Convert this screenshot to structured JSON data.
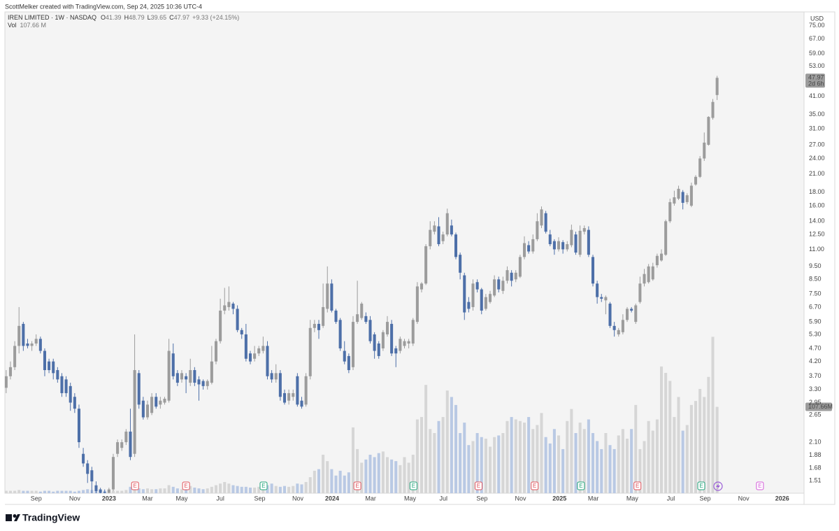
{
  "chart_data": {
    "type": "candlestick",
    "credit": "ScottMelker created with TradingView.com, Sep 24, 2025 10:36 UTC-4",
    "symbol": "IREN LIMITED · 1W · NASDAQ",
    "ohlc_letters": [
      "O",
      "H",
      "L",
      "C"
    ],
    "change_label": "+9.33 (+24.15%)",
    "volume_name": "Vol",
    "volume_legend_label": "107.66 M",
    "last_volume_label": "107.66M",
    "countdown": "2d 6h",
    "currency": "USD",
    "brand": "TradingView",
    "log_scale": true,
    "grid": false,
    "up_color": "#9c9c9c",
    "down_color": "#4d6fa8",
    "volume_up_color": "#d6d6d6",
    "volume_down_color": "#b9c9e4",
    "open": [
      3.35,
      3.7,
      4.0,
      4.8,
      5.8,
      4.9,
      4.8,
      4.9,
      5.1,
      4.6,
      4.2,
      4.2,
      3.9,
      3.7,
      3.6,
      3.4,
      3.1,
      2.8,
      1.9,
      1.75,
      1.65,
      1.45,
      1.4,
      1.37,
      1.36,
      1.4,
      1.9,
      2.0,
      2.1,
      2.3,
      1.9,
      3.8,
      3.0,
      2.6,
      2.7,
      3.1,
      2.9,
      2.95,
      3.0,
      4.5,
      3.8,
      3.6,
      3.7,
      3.5,
      3.9,
      3.6,
      3.55,
      3.4,
      3.5,
      4.2,
      5.0,
      6.5,
      6.7,
      6.9,
      6.6,
      5.5,
      5.3,
      4.5,
      4.3,
      4.5,
      4.6,
      4.8,
      3.8,
      3.6,
      3.8,
      3.2,
      3.0,
      3.1,
      3.7,
      3.0,
      2.9,
      3.7,
      5.6,
      5.8,
      5.7,
      6.6,
      8.2,
      6.5,
      6.0,
      4.6,
      4.4,
      4.0,
      5.9,
      6.1,
      6.2,
      6.0,
      5.3,
      4.9,
      4.7,
      5.3,
      5.8,
      4.7,
      4.6,
      4.8,
      4.9,
      4.9,
      5.9,
      7.8,
      8.2,
      11.3,
      12.8,
      13.4,
      11.8,
      12.5,
      13.5,
      12.5,
      10.5,
      8.8,
      7.0,
      6.7,
      8.3,
      7.8,
      6.6,
      7.0,
      7.4,
      8.5,
      7.7,
      8.4,
      9.0,
      8.5,
      8.7,
      10.3,
      11.4,
      10.8,
      12.0,
      13.5,
      15.0,
      12.5,
      11.8,
      11.0,
      11.7,
      11.0,
      11.4,
      12.5,
      10.5,
      12.8,
      13.0,
      10.3,
      8.2,
      7.3,
      7.1,
      6.9,
      5.7,
      5.3,
      5.4,
      6.0,
      6.6,
      5.9,
      7.0,
      8.2,
      8.3,
      8.5,
      9.6,
      10.0,
      10.5,
      14.0,
      16.3,
      17.0,
      18.0,
      16.5,
      16.0,
      19.2,
      20.5,
      24.0,
      27.0,
      34.0,
      41.39
    ],
    "high": [
      3.9,
      4.2,
      5.0,
      6.7,
      5.9,
      5.1,
      5.0,
      5.3,
      5.2,
      4.7,
      4.3,
      4.3,
      4.0,
      3.8,
      3.7,
      3.5,
      3.2,
      2.9,
      2.0,
      1.8,
      1.7,
      1.5,
      1.42,
      1.4,
      1.42,
      1.9,
      2.15,
      2.15,
      2.35,
      2.8,
      5.3,
      3.9,
      3.1,
      3.0,
      3.2,
      3.2,
      3.1,
      3.1,
      5.1,
      4.9,
      3.9,
      3.9,
      3.8,
      4.3,
      4.0,
      3.7,
      3.6,
      3.6,
      4.8,
      5.1,
      7.2,
      7.9,
      8.0,
      7.0,
      6.8,
      5.6,
      5.8,
      4.6,
      4.8,
      4.8,
      5.2,
      5.0,
      3.9,
      4.1,
      3.9,
      3.3,
      3.3,
      3.3,
      3.8,
      3.1,
      3.8,
      6.0,
      6.0,
      6.0,
      8.2,
      9.5,
      8.5,
      6.6,
      6.1,
      5.0,
      4.5,
      6.2,
      8.4,
      7.0,
      6.4,
      6.2,
      5.4,
      5.0,
      5.5,
      6.2,
      6.0,
      4.8,
      5.2,
      5.1,
      5.1,
      6.1,
      8.3,
      8.3,
      11.5,
      14.0,
      14.0,
      14.5,
      12.8,
      15.6,
      14.2,
      12.7,
      10.7,
      9.0,
      7.3,
      8.5,
      8.5,
      7.9,
      7.5,
      7.7,
      8.8,
      8.7,
      8.7,
      9.5,
      9.2,
      9.2,
      10.5,
      12.3,
      11.8,
      12.5,
      15.0,
      15.9,
      15.3,
      13.0,
      12.0,
      12.2,
      11.9,
      11.8,
      13.6,
      12.8,
      13.5,
      13.5,
      13.4,
      10.5,
      8.4,
      7.5,
      7.4,
      7.0,
      5.9,
      5.6,
      6.3,
      6.7,
      6.7,
      6.9,
      8.7,
      9.3,
      9.7,
      9.8,
      10.6,
      11.0,
      14.2,
      17.0,
      18.2,
      19.0,
      18.3,
      17.8,
      19.5,
      20.8,
      24.5,
      30.0,
      34.5,
      40.0,
      48.79
    ],
    "low": [
      3.2,
      3.6,
      3.9,
      4.5,
      4.6,
      4.7,
      4.6,
      4.8,
      4.5,
      3.7,
      3.8,
      3.6,
      3.5,
      3.1,
      3.1,
      2.75,
      2.7,
      2.0,
      1.7,
      1.48,
      1.35,
      1.33,
      1.33,
      1.33,
      1.33,
      1.38,
      1.85,
      1.95,
      2.05,
      1.8,
      1.85,
      2.8,
      2.55,
      2.55,
      2.65,
      2.8,
      2.8,
      2.9,
      2.95,
      3.6,
      3.4,
      3.5,
      3.2,
      3.4,
      3.4,
      3.0,
      3.3,
      3.3,
      3.45,
      4.1,
      4.9,
      6.3,
      6.5,
      6.3,
      5.4,
      5.1,
      4.2,
      4.1,
      4.2,
      4.4,
      4.5,
      3.6,
      3.5,
      3.5,
      3.0,
      2.9,
      2.9,
      3.0,
      2.85,
      2.8,
      2.85,
      3.6,
      5.4,
      5.1,
      5.6,
      6.4,
      6.4,
      5.8,
      4.6,
      4.1,
      3.8,
      3.9,
      5.8,
      6.0,
      5.8,
      4.9,
      4.3,
      4.3,
      4.6,
      5.2,
      4.4,
      4.0,
      4.5,
      4.7,
      4.7,
      4.8,
      5.8,
      7.6,
      8.1,
      11.0,
      12.5,
      11.3,
      11.5,
      12.3,
      12.3,
      10.1,
      8.5,
      6.0,
      6.4,
      6.5,
      7.6,
      6.3,
      6.5,
      6.9,
      7.3,
      7.6,
      7.5,
      8.2,
      8.0,
      8.3,
      8.6,
      10.1,
      10.6,
      10.6,
      11.8,
      13.2,
      12.6,
      11.3,
      10.5,
      10.8,
      10.6,
      10.8,
      11.2,
      10.5,
      10.3,
      12.5,
      10.3,
      8.0,
      6.9,
      7.0,
      6.3,
      5.6,
      5.2,
      5.2,
      5.3,
      5.9,
      6.4,
      5.8,
      6.9,
      8.0,
      8.2,
      8.4,
      9.4,
      9.9,
      10.4,
      13.8,
      16.0,
      16.8,
      15.5,
      16.2,
      15.8,
      19.0,
      20.3,
      23.5,
      26.8,
      33.5,
      39.65
    ],
    "close": [
      3.7,
      4.0,
      4.8,
      5.7,
      4.8,
      4.8,
      4.9,
      5.1,
      4.6,
      3.9,
      3.9,
      3.8,
      3.6,
      3.2,
      3.2,
      2.95,
      2.8,
      2.1,
      1.75,
      1.6,
      1.5,
      1.38,
      1.36,
      1.36,
      1.4,
      1.85,
      2.1,
      2.1,
      2.3,
      1.85,
      3.9,
      2.9,
      2.6,
      2.9,
      3.1,
      2.85,
      3.0,
      3.05,
      4.6,
      3.7,
      3.5,
      3.8,
      3.6,
      3.9,
      3.5,
      3.45,
      3.4,
      3.55,
      4.2,
      5.0,
      6.5,
      6.8,
      7.0,
      6.6,
      5.5,
      5.3,
      4.3,
      4.2,
      4.5,
      4.7,
      4.8,
      3.7,
      3.6,
      3.8,
      3.1,
      2.95,
      3.2,
      3.2,
      2.9,
      2.85,
      3.7,
      5.6,
      5.8,
      5.5,
      6.7,
      8.2,
      6.5,
      5.9,
      4.7,
      4.2,
      3.9,
      5.9,
      6.3,
      6.9,
      5.9,
      5.0,
      4.6,
      4.4,
      5.4,
      5.9,
      4.5,
      4.5,
      5.1,
      5.0,
      5.0,
      6.0,
      8.0,
      8.2,
      11.3,
      13.0,
      13.5,
      11.5,
      12.5,
      15.0,
      12.5,
      10.3,
      9.0,
      6.4,
      6.6,
      8.2,
      7.8,
      6.5,
      7.3,
      7.5,
      8.5,
      7.8,
      8.4,
      9.2,
      8.4,
      9.0,
      10.3,
      11.6,
      10.8,
      12.0,
      14.0,
      15.5,
      12.8,
      11.5,
      11.0,
      11.8,
      11.0,
      11.5,
      13.0,
      10.7,
      12.9,
      13.2,
      10.5,
      8.2,
      7.3,
      7.2,
      7.3,
      5.7,
      5.5,
      5.5,
      6.0,
      6.6,
      6.5,
      6.8,
      8.2,
      8.9,
      9.5,
      9.5,
      10.4,
      10.6,
      14.0,
      16.5,
      17.2,
      18.5,
      16.4,
      17.5,
      19.0,
      20.5,
      24.0,
      27.5,
      34.3,
      39.0,
      47.97
    ],
    "volume": [
      3,
      3,
      3,
      4,
      3,
      3,
      3,
      3,
      2,
      3,
      3,
      2,
      3,
      3,
      3,
      3,
      2,
      3,
      4,
      5,
      4,
      3,
      3,
      3,
      2,
      3,
      3,
      3,
      4,
      8,
      9,
      6,
      5,
      6,
      5,
      5,
      6,
      6,
      10,
      8,
      6,
      5,
      6,
      9,
      7,
      6,
      5,
      6,
      8,
      10,
      12,
      14,
      12,
      10,
      9,
      8,
      8,
      7,
      7,
      8,
      9,
      10,
      12,
      9,
      8,
      9,
      8,
      9,
      12,
      11,
      14,
      20,
      28,
      30,
      48,
      40,
      30,
      22,
      28,
      22,
      26,
      82,
      55,
      38,
      42,
      48,
      45,
      50,
      52,
      45,
      42,
      40,
      35,
      45,
      38,
      48,
      92,
      95,
      135,
      80,
      75,
      90,
      95,
      128,
      120,
      110,
      75,
      88,
      60,
      65,
      75,
      70,
      68,
      58,
      70,
      72,
      75,
      90,
      95,
      92,
      90,
      88,
      95,
      80,
      85,
      100,
      70,
      62,
      80,
      72,
      55,
      90,
      105,
      75,
      88,
      80,
      92,
      75,
      65,
      55,
      75,
      60,
      55,
      72,
      80,
      68,
      80,
      110,
      55,
      65,
      90,
      78,
      92,
      158,
      150,
      140,
      95,
      120,
      78,
      85,
      110,
      115,
      130,
      120,
      145,
      195,
      107.66
    ],
    "volume_ylim": [
      0,
      600
    ],
    "events": [
      {
        "x": 30.1,
        "label": "E",
        "color": "#e0525a"
      },
      {
        "x": 42.0,
        "label": "E",
        "color": "#e0525a"
      },
      {
        "x": 60.1,
        "label": "E",
        "color": "#22a57a"
      },
      {
        "x": 82.0,
        "label": "E",
        "color": "#e0525a"
      },
      {
        "x": 95.1,
        "label": "E",
        "color": "#22a57a"
      },
      {
        "x": 110.3,
        "label": "E",
        "color": "#e0525a"
      },
      {
        "x": 123.4,
        "label": "E",
        "color": "#e0525a"
      },
      {
        "x": 134.2,
        "label": "E",
        "color": "#22a57a"
      },
      {
        "x": 147.4,
        "label": "E",
        "color": "#e0525a"
      },
      {
        "x": 162.3,
        "label": "E",
        "color": "#22a57a"
      },
      {
        "x": 176.0,
        "label": "E",
        "color": "#d35ad8"
      }
    ],
    "xlim": [
      -0.3,
      186.3
    ],
    "xticks": [
      {
        "value": 7.0,
        "label": "Sep"
      },
      {
        "value": 16.0,
        "label": "Nov"
      },
      {
        "value": 24.0,
        "label": "2023"
      },
      {
        "value": 33.0,
        "label": "Mar"
      },
      {
        "value": 41.0,
        "label": "May"
      },
      {
        "value": 50.0,
        "label": "Jul"
      },
      {
        "value": 59.2,
        "label": "Sep"
      },
      {
        "value": 68.1,
        "label": "Nov"
      },
      {
        "value": 76.1,
        "label": "2024"
      },
      {
        "value": 85.1,
        "label": "Mar"
      },
      {
        "value": 94.3,
        "label": "May"
      },
      {
        "value": 102.1,
        "label": "Jul"
      },
      {
        "value": 111.1,
        "label": "Sep"
      },
      {
        "value": 120.1,
        "label": "Nov"
      },
      {
        "value": 129.2,
        "label": "2025"
      },
      {
        "value": 137.1,
        "label": "Mar"
      },
      {
        "value": 146.2,
        "label": "May"
      },
      {
        "value": 155.2,
        "label": "Jul"
      },
      {
        "value": 163.2,
        "label": "Sep"
      },
      {
        "value": 172.2,
        "label": "Nov"
      },
      {
        "value": 181.2,
        "label": "2026"
      }
    ],
    "ylim": [
      1.355,
      84.5
    ],
    "yticks": [
      {
        "value": 75,
        "label": "75.00"
      },
      {
        "value": 67,
        "label": "67.00"
      },
      {
        "value": 59,
        "label": "59.00"
      },
      {
        "value": 53,
        "label": "53.00"
      },
      {
        "value": 41,
        "label": "41.00"
      },
      {
        "value": 35,
        "label": "35.00"
      },
      {
        "value": 31,
        "label": "31.00"
      },
      {
        "value": 27,
        "label": "27.00"
      },
      {
        "value": 24,
        "label": "24.00"
      },
      {
        "value": 21,
        "label": "21.00"
      },
      {
        "value": 18,
        "label": "18.00"
      },
      {
        "value": 16,
        "label": "16.00"
      },
      {
        "value": 14,
        "label": "14.00"
      },
      {
        "value": 12.5,
        "label": "12.50"
      },
      {
        "value": 11,
        "label": "11.00"
      },
      {
        "value": 9.5,
        "label": "9.50"
      },
      {
        "value": 8.5,
        "label": "8.50"
      },
      {
        "value": 7.5,
        "label": "7.50"
      },
      {
        "value": 6.7,
        "label": "6.70"
      },
      {
        "value": 5.9,
        "label": "5.90"
      },
      {
        "value": 5.3,
        "label": "5.30"
      },
      {
        "value": 4.7,
        "label": "4.70"
      },
      {
        "value": 4.2,
        "label": "4.20"
      },
      {
        "value": 3.7,
        "label": "3.70"
      },
      {
        "value": 3.3,
        "label": "3.30"
      },
      {
        "value": 2.95,
        "label": "2.95"
      },
      {
        "value": 2.65,
        "label": "2.65"
      },
      {
        "value": 2.1,
        "label": "2.10"
      },
      {
        "value": 1.88,
        "label": "1.88"
      },
      {
        "value": 1.68,
        "label": "1.68"
      },
      {
        "value": 1.51,
        "label": "1.51"
      }
    ]
  }
}
